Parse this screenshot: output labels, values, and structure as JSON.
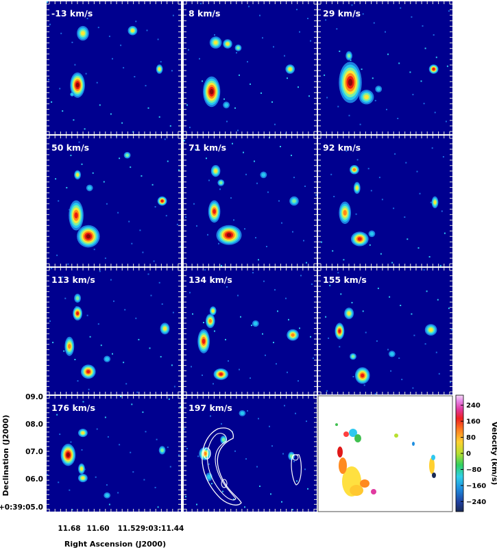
{
  "chart_data": {
    "type": "heatmap",
    "panel_labels": [
      "-13 km/s",
      "8 km/s",
      "29 km/s",
      "50 km/s",
      "71 km/s",
      "92 km/s",
      "113 km/s",
      "134 km/s",
      "155 km/s",
      "176 km/s",
      "197 km/s"
    ],
    "xlabel": "Right Ascension (J2000)",
    "ylabel": "Declination (J2000)",
    "x_ticks": [
      "11.68",
      "11.60",
      "11.529:03:11.44"
    ],
    "y_ticks": [
      "09.0",
      "08.0",
      "07.0",
      "06.0",
      "+0:39:05.0"
    ],
    "colorbar": {
      "label": "Velocity (km/s)",
      "ticks": [
        "240",
        "160",
        "80",
        "0",
        "−80",
        "−160",
        "−240"
      ],
      "values": [
        240,
        160,
        80,
        0,
        -80,
        -160,
        -240
      ],
      "range": [
        -290,
        290
      ]
    },
    "colors": {
      "background": "#00008f",
      "frame_tick": "#cccccc",
      "contour": "#ffffff"
    },
    "grid": false
  }
}
